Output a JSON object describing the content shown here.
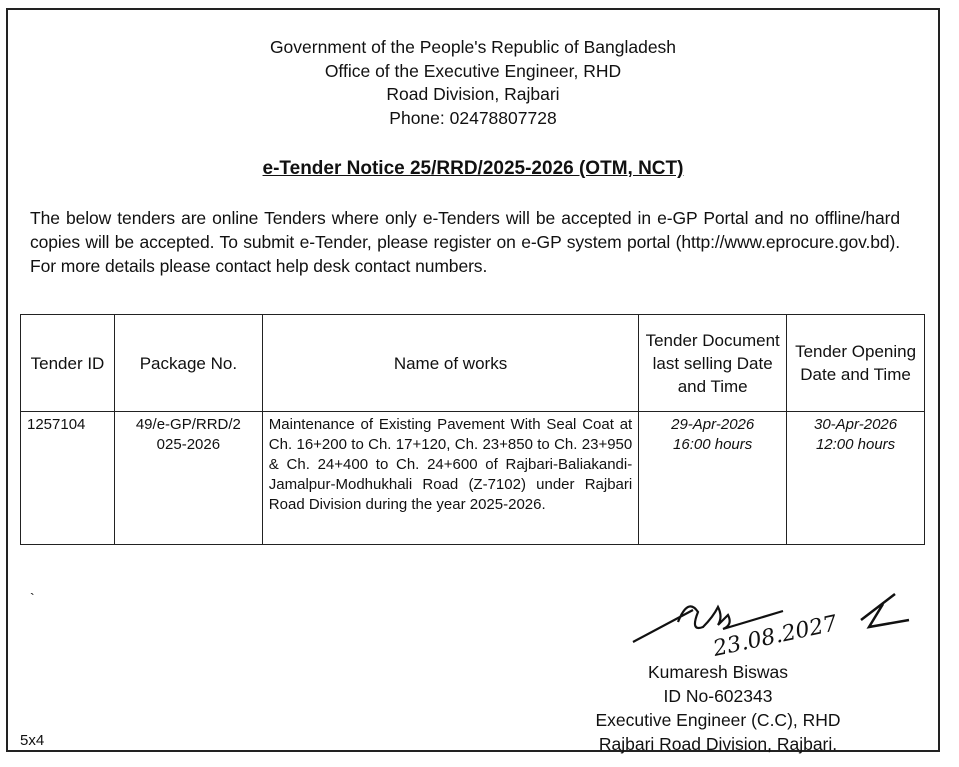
{
  "header": {
    "lines": [
      "Government of the People's Republic of Bangladesh",
      "Office of the Executive Engineer, RHD",
      "Road Division, Rajbari",
      "Phone: 02478807728"
    ]
  },
  "title": "e-Tender Notice 25/RRD/2025-2026 (OTM, NCT)",
  "intro": "The below tenders are online Tenders where only e-Tenders will be accepted in e-GP Portal and no offline/hard copies will be accepted. To submit e-Tender, please register on e-GP system portal (http://www.eprocure.gov.bd). For more details please contact help desk contact numbers.",
  "table": {
    "headers": [
      "Tender ID",
      "Package No.",
      "Name of works",
      "Tender Document last selling Date and Time",
      "Tender Opening Date and Time"
    ],
    "rows": [
      {
        "tender_id": "1257104",
        "package_no": "49/e-GP/RRD/2025-2026",
        "name_of_works": "Maintenance of Existing Pavement With Seal Coat at Ch. 16+200 to Ch. 17+120, Ch. 23+850 to Ch. 23+950 & Ch. 24+400 to Ch. 24+600 of Rajbari-Baliakandi-Jamalpur-Modhukhali Road (Z-7102) under Rajbari Road Division during the year 2025-2026.",
        "selling_date": "29-Apr-2026",
        "selling_time": "16:00 hours",
        "opening_date": "30-Apr-2026",
        "opening_time": "12:00 hours"
      }
    ]
  },
  "signature": {
    "handwritten": "23.08.2027",
    "name": "Kumaresh Biswas",
    "id": "ID No-602343",
    "designation": "Executive Engineer (C.C), RHD",
    "office": "Rajbari Road Division, Rajbari."
  },
  "footer_code": "5x4"
}
